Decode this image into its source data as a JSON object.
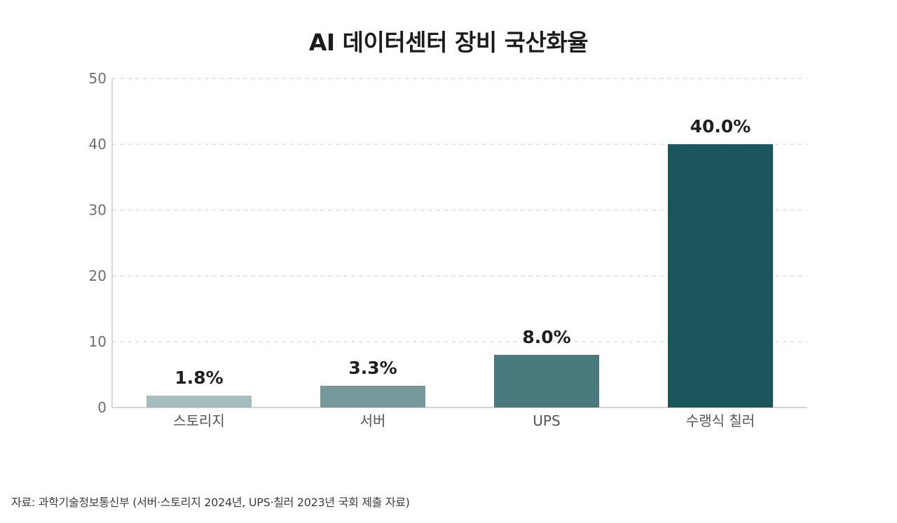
{
  "chart_data": {
    "type": "bar",
    "title": "AI 데이터센터 장비 국산화율",
    "categories": [
      "스토리지",
      "서버",
      "UPS",
      "수랭식 칠러"
    ],
    "values": [
      1.8,
      3.3,
      8.0,
      40.0
    ],
    "value_labels": [
      "1.8%",
      "3.3%",
      "8.0%",
      "40.0%"
    ],
    "bar_colors": [
      "#a5bdbf",
      "#769a9c",
      "#48797c",
      "#1b555c"
    ],
    "yticks": [
      0,
      10,
      20,
      30,
      40,
      50
    ],
    "ylim": [
      0,
      50
    ],
    "xlabel": "",
    "ylabel": "",
    "grid": true,
    "legend": "none"
  },
  "source_note": "자료: 과학기술정보통신부 (서버·스토리지 2024년, UPS·칠러 2023년 국회 제출 자료)",
  "colors": {
    "grid": "#d9d9d9",
    "axis": "#c8c8c8",
    "tick_text": "#6e6e6e",
    "category_text": "#555555",
    "value_text": "#1f1f1f"
  }
}
